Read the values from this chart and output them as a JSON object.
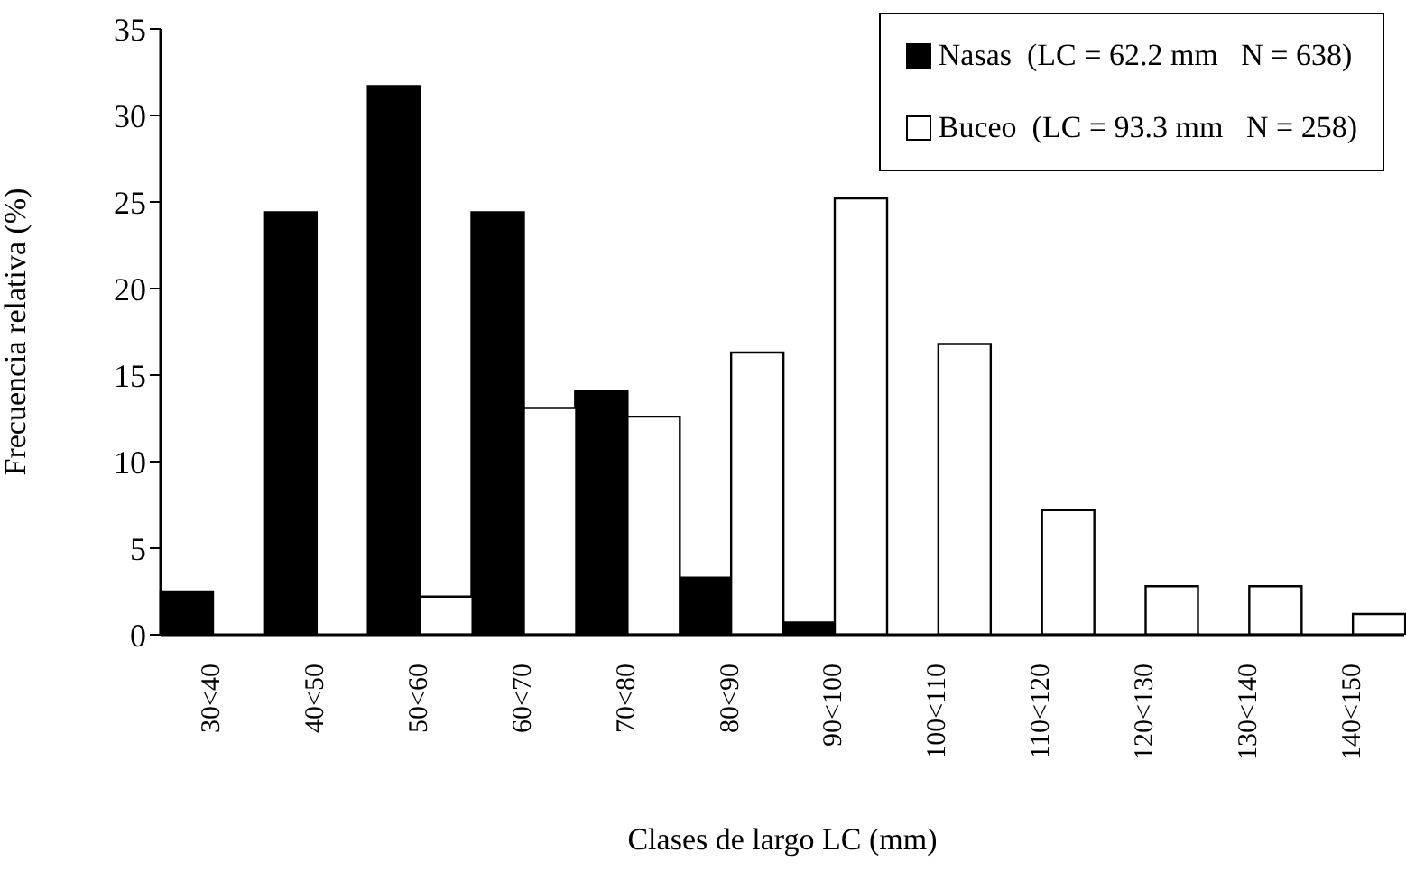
{
  "chart_data": {
    "type": "bar",
    "xlabel": "Clases de largo LC (mm)",
    "ylabel": "Frecuencia relativa (%)",
    "categories": [
      "30<40",
      "40<50",
      "50<60",
      "60<70",
      "70<80",
      "80<90",
      "90<100",
      "100<110",
      "110<120",
      "120<130",
      "130<140",
      "140<150"
    ],
    "series": [
      {
        "name": "Nasas  (LC = 62.2 mm   N = 638)",
        "color": "#000000",
        "values": [
          2.5,
          24.4,
          31.7,
          24.4,
          14.1,
          3.3,
          0.7,
          0,
          0,
          0,
          0,
          0
        ]
      },
      {
        "name": "Buceo  (LC = 93.3 mm   N = 258)",
        "color": "#ffffff",
        "values": [
          0,
          0,
          2.2,
          13.1,
          12.6,
          16.3,
          25.2,
          16.8,
          7.2,
          2.8,
          2.8,
          1.2
        ]
      }
    ],
    "ylim": [
      0,
      35
    ],
    "yticks": [
      0,
      5,
      10,
      15,
      20,
      25,
      30,
      35
    ],
    "grid": false,
    "legend": "top right"
  }
}
